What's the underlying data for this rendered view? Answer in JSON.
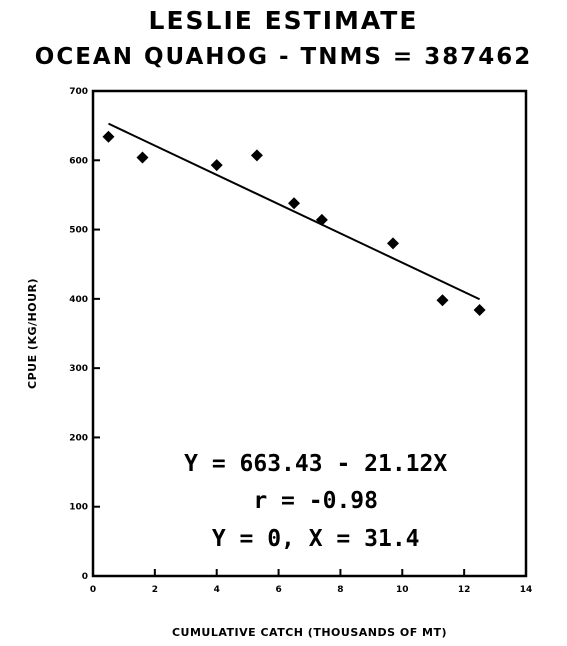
{
  "title": "LESLIE ESTIMATE",
  "subtitle": "OCEAN QUAHOG - TNMS = 387462",
  "chart_data": {
    "type": "scatter",
    "title": "LESLIE ESTIMATE",
    "subtitle": "OCEAN QUAHOG - TNMS = 387462",
    "xlabel": "CUMULATIVE CATCH (THOUSANDS OF MT)",
    "ylabel": "CPUE (KG/HOUR)",
    "xlim": [
      0,
      14
    ],
    "ylim": [
      0,
      700
    ],
    "xticks": [
      0,
      2,
      4,
      6,
      8,
      10,
      12,
      14
    ],
    "yticks": [
      0,
      100,
      200,
      300,
      400,
      500,
      600,
      700
    ],
    "grid": false,
    "marker": "diamond",
    "series": [
      {
        "points": [
          [
            0.5,
            634
          ],
          [
            1.6,
            604
          ],
          [
            4.0,
            593
          ],
          [
            5.3,
            607
          ],
          [
            6.5,
            538
          ],
          [
            7.4,
            514
          ],
          [
            9.7,
            480
          ],
          [
            11.3,
            398
          ],
          [
            12.5,
            384
          ]
        ]
      }
    ],
    "fit_line": {
      "intercept": 663.43,
      "slope": -21.12,
      "x_range": [
        0.5,
        12.5
      ]
    },
    "annotations": [
      "Y = 663.43 - 21.12X",
      "r = -0.98",
      "Y = 0, X = 31.4"
    ]
  }
}
